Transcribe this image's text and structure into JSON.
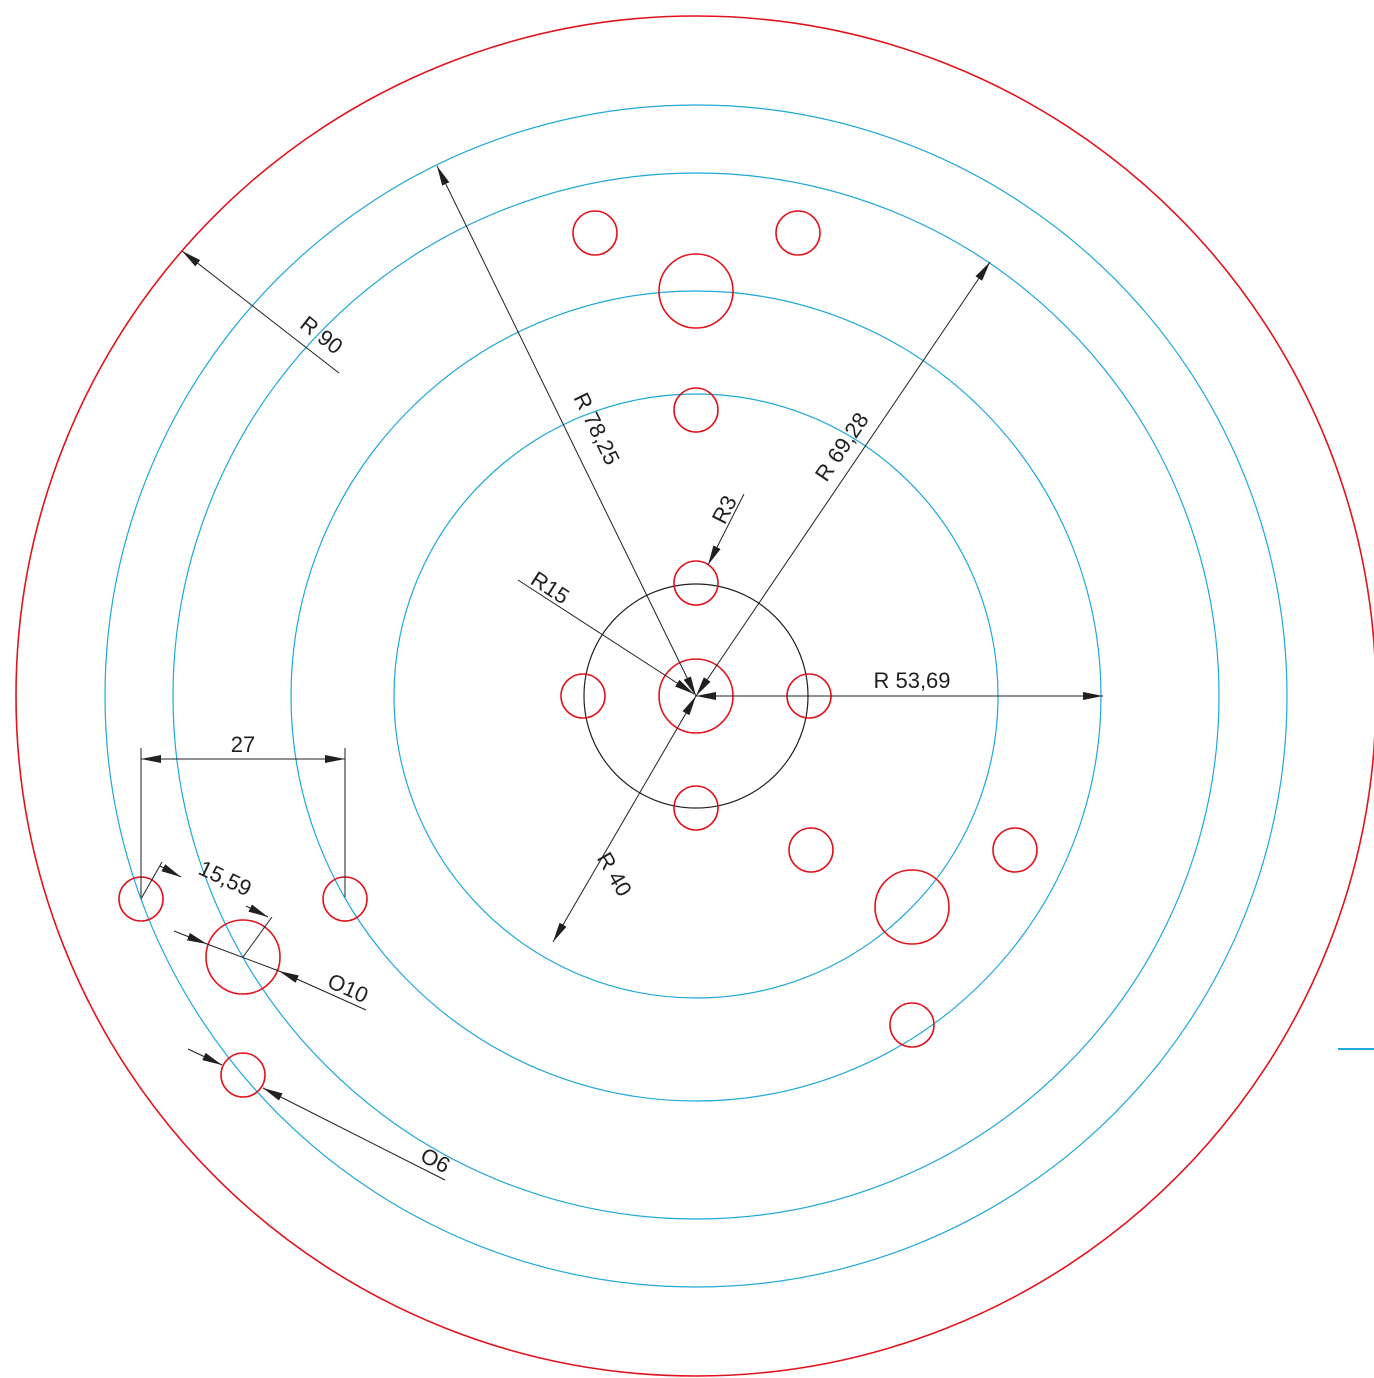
{
  "colors": {
    "outline": "#e0141d",
    "construction": "#1fa8d8",
    "dimension": "#231f20",
    "background": "#ffffff"
  },
  "labels": {
    "r90": "R 90",
    "r78": "R 78,25",
    "r69": "R 69,28",
    "r53": "R 53,69",
    "r40": "R 40",
    "r15": "R15",
    "r3": "R3",
    "d27": "27",
    "d1559": "15,59",
    "o10": "O10",
    "o6": "O6"
  }
}
